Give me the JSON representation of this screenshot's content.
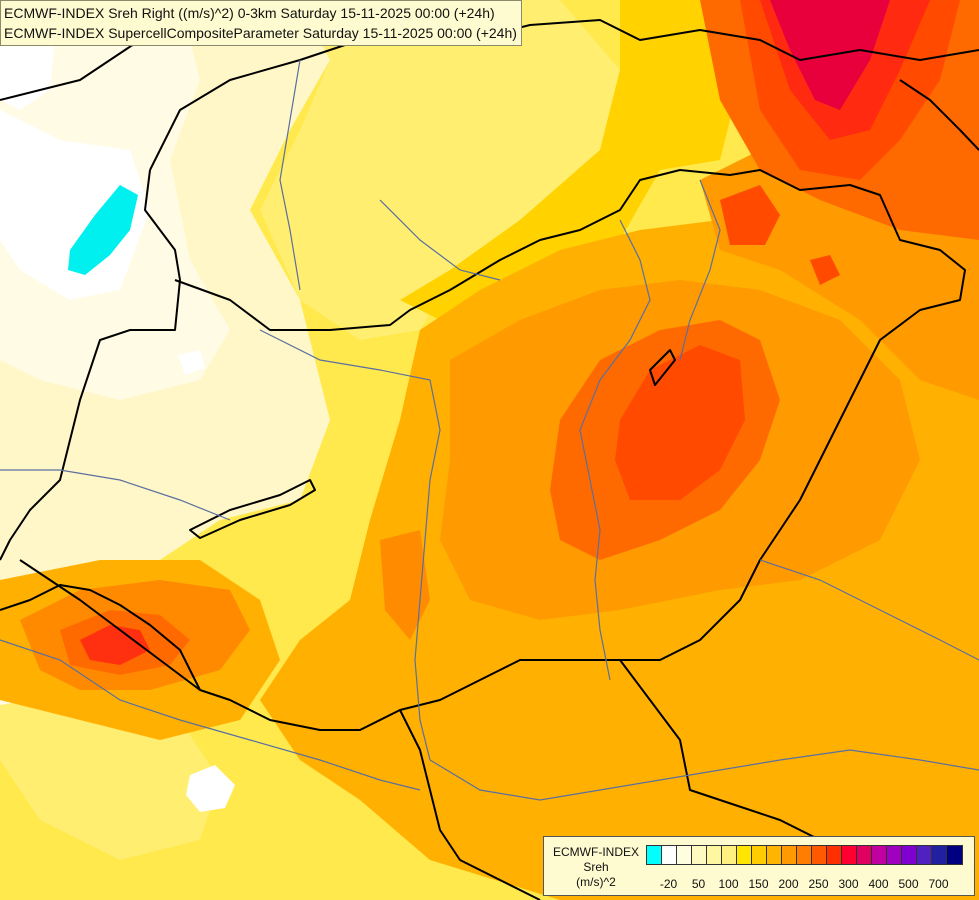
{
  "header": {
    "line1": "ECMWF-INDEX Sreh Right ((m/s)^2) 0-3km Saturday 15-11-2025 00:00 (+24h)",
    "line2": "ECMWF-INDEX SupercellCompositeParameter Saturday 15-11-2025 00:00 (+24h)"
  },
  "legend": {
    "title": [
      "ECMWF-INDEX",
      "Sreh",
      "(m/s)^2"
    ],
    "colors": [
      "#00ffff",
      "#ffffff",
      "#fffde0",
      "#fffbc0",
      "#fff7a0",
      "#fff080",
      "#ffe600",
      "#ffcc00",
      "#ffb400",
      "#ff9a00",
      "#ff7d00",
      "#ff5a00",
      "#ff3000",
      "#ff0030",
      "#e00060",
      "#c000a0",
      "#a000c0",
      "#8000d0",
      "#5020c0",
      "#2020a0",
      "#000080"
    ],
    "ticks": [
      "-20",
      "50",
      "100",
      "150",
      "200",
      "250",
      "300",
      "400",
      "500",
      "700"
    ]
  },
  "field": {
    "background": "#ffe94d",
    "palette": {
      "cyan": "#00f0f0",
      "white": "#ffffff",
      "pale_cream": "#fff8cc",
      "light_yellow": "#ffef80",
      "yellow": "#ffd000",
      "light_orange": "#ffaa00",
      "orange": "#ff8c00",
      "dark_orange": "#ff6a00",
      "orange_red": "#ff4a00",
      "red": "#ff2a10",
      "crimson": "#e8003c"
    },
    "boundary_color": "#000000",
    "river_color": "#5a6fa0"
  }
}
